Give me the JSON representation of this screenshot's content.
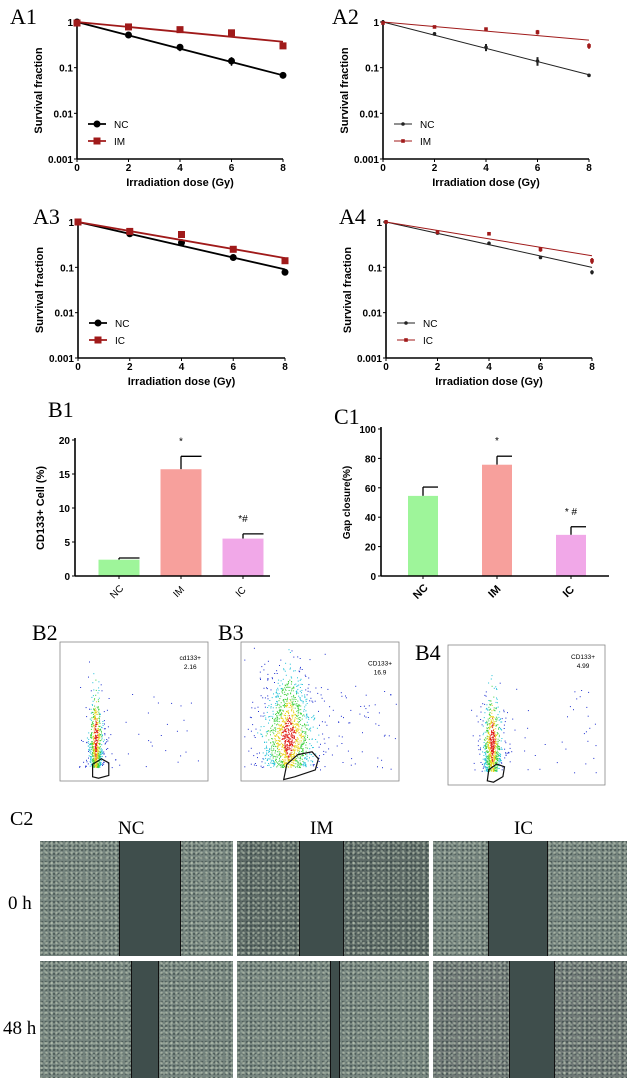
{
  "chart_data": [
    {
      "panel_label": "A1",
      "type": "line",
      "xlabel": "Irradiation dose (Gy)",
      "ylabel": "Survival fraction",
      "x": [
        0,
        2,
        4,
        6,
        8
      ],
      "xlim": [
        0,
        8
      ],
      "x_ticks": [
        "0",
        "2",
        "4",
        "6",
        "8"
      ],
      "yscale": "log",
      "ylim": [
        0.001,
        1
      ],
      "y_ticks": [
        "0.001",
        "0.01",
        "0.1",
        "1"
      ],
      "legend": "bottom-left",
      "grid": false,
      "series": [
        {
          "name": "NC",
          "color": "#000000",
          "marker": "circle",
          "y": [
            1,
            0.52,
            0.28,
            0.14,
            0.068
          ],
          "err": [
            0.02,
            0.03,
            0.05,
            0.03,
            0.004
          ],
          "fit_end": 0.068
        },
        {
          "name": "IM",
          "color": "#a01a1a",
          "marker": "square",
          "y": [
            0.95,
            0.78,
            0.68,
            0.58,
            0.3
          ],
          "err": [
            0.03,
            0.04,
            0.03,
            0.05,
            0.03
          ],
          "fit_end": 0.37
        }
      ]
    },
    {
      "panel_label": "A2",
      "type": "line",
      "xlabel": "Irradiation dose (Gy)",
      "ylabel": "Survival fraction",
      "x": [
        0,
        2,
        4,
        6,
        8
      ],
      "xlim": [
        0,
        8
      ],
      "x_ticks": [
        "0",
        "2",
        "4",
        "6",
        "8"
      ],
      "yscale": "log",
      "ylim": [
        0.001,
        1
      ],
      "y_ticks": [
        "0.001",
        "0.01",
        "0.1",
        "1"
      ],
      "legend": "bottom-left",
      "grid": false,
      "series": [
        {
          "name": "NC",
          "color": "#222222",
          "marker": "circle",
          "y": [
            1,
            0.55,
            0.28,
            0.14,
            0.068
          ],
          "err": [
            0.02,
            0.05,
            0.05,
            0.03,
            0.003
          ],
          "fit_end": 0.07
        },
        {
          "name": "IM",
          "color": "#a01a1a",
          "marker": "square",
          "y": [
            0.95,
            0.78,
            0.7,
            0.6,
            0.3
          ],
          "err": [
            0.05,
            0.06,
            0.03,
            0.07,
            0.04
          ],
          "fit_end": 0.4
        }
      ]
    },
    {
      "panel_label": "A3",
      "type": "line",
      "xlabel": "Irradiation dose (Gy)",
      "ylabel": "Survival fraction",
      "x": [
        0,
        2,
        4,
        6,
        8
      ],
      "xlim": [
        0,
        8
      ],
      "x_ticks": [
        "0",
        "2",
        "4",
        "6",
        "8"
      ],
      "yscale": "log",
      "ylim": [
        0.001,
        1
      ],
      "y_ticks": [
        "0.001",
        "0.01",
        "0.1",
        "1"
      ],
      "legend": "bottom-left",
      "grid": false,
      "series": [
        {
          "name": "NC",
          "color": "#000000",
          "marker": "circle",
          "y": [
            1,
            0.55,
            0.35,
            0.165,
            0.078
          ],
          "err": [
            0.02,
            0.03,
            0.03,
            0.01,
            0.006
          ],
          "fit_end": 0.09
        },
        {
          "name": "IC",
          "color": "#a01a1a",
          "marker": "square",
          "y": [
            1,
            0.62,
            0.53,
            0.25,
            0.14
          ],
          "err": [
            0.02,
            0.04,
            0.08,
            0.02,
            0.015
          ],
          "fit_end": 0.16
        }
      ]
    },
    {
      "panel_label": "A4",
      "type": "line",
      "xlabel": "Irradiation dose (Gy)",
      "ylabel": "Survival fraction",
      "x": [
        0,
        2,
        4,
        6,
        8
      ],
      "xlim": [
        0,
        8
      ],
      "x_ticks": [
        "0",
        "2",
        "4",
        "6",
        "8"
      ],
      "yscale": "log",
      "ylim": [
        0.001,
        1
      ],
      "y_ticks": [
        "0.001",
        "0.01",
        "0.1",
        "1"
      ],
      "legend": "bottom-left",
      "grid": false,
      "series": [
        {
          "name": "NC",
          "color": "#222222",
          "marker": "circle",
          "y": [
            1,
            0.57,
            0.34,
            0.165,
            0.078
          ],
          "err": [
            0.02,
            0.03,
            0.03,
            0.01,
            0.008
          ],
          "fit_end": 0.1
        },
        {
          "name": "IC",
          "color": "#a01a1a",
          "marker": "square",
          "y": [
            1,
            0.6,
            0.55,
            0.25,
            0.14
          ],
          "err": [
            0.02,
            0.05,
            0.02,
            0.03,
            0.02
          ],
          "fit_end": 0.18
        }
      ]
    },
    {
      "panel_label": "B1",
      "type": "bar",
      "categories": [
        "NC",
        "IM",
        "IC"
      ],
      "values": [
        2.4,
        15.7,
        5.5
      ],
      "err": [
        0.25,
        1.9,
        0.7
      ],
      "annotations": [
        "",
        "*",
        "*#"
      ],
      "colors": [
        "#9ef59a",
        "#f7a09c",
        "#f1a8e8"
      ],
      "xlabel": "",
      "ylabel": "CD133+ Cell (%)",
      "ylim": [
        0,
        20
      ],
      "y_ticks": [
        "0",
        "5",
        "10",
        "15",
        "20"
      ]
    },
    {
      "panel_label": "C1",
      "type": "bar",
      "categories": [
        "NC",
        "IM",
        "IC"
      ],
      "values": [
        54.5,
        75.7,
        28
      ],
      "err": [
        6,
        5.8,
        5.5
      ],
      "annotations": [
        "",
        "*",
        "* #"
      ],
      "colors": [
        "#9ef59a",
        "#f7a09c",
        "#f1a8e8"
      ],
      "xlabel": "",
      "ylabel": "Gap closure(%)",
      "ylim": [
        0,
        100
      ],
      "y_ticks": [
        "0",
        "20",
        "40",
        "60",
        "80",
        "100"
      ]
    }
  ],
  "flow_panels": [
    {
      "panel_label": "B2",
      "gate_label": "cd133+",
      "gate_value": "2.16"
    },
    {
      "panel_label": "B3",
      "gate_label": "CD133+",
      "gate_value": "16.9"
    },
    {
      "panel_label": "B4",
      "gate_label": "CD133+",
      "gate_value": "4.99"
    }
  ],
  "wound_healing": {
    "panel_label": "C2",
    "columns": [
      "NC",
      "IM",
      "IC"
    ],
    "rows": [
      "0 h",
      "48 h"
    ]
  }
}
